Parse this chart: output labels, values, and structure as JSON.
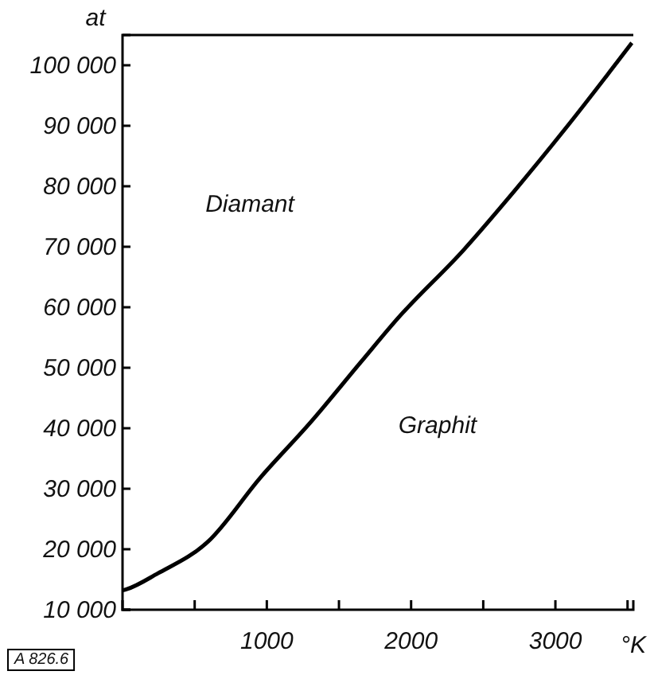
{
  "chart_data": {
    "type": "line",
    "xlabel": "°K",
    "ylabel": "at",
    "x": [
      0,
      30,
      244,
      594,
      954,
      1304,
      1654,
      1909,
      2365,
      2715,
      3075,
      3530
    ],
    "series": [
      {
        "color": "#000000",
        "values": [
          13200,
          13400,
          16000,
          21300,
          31800,
          41000,
          51000,
          58200,
          69500,
          79200,
          89700,
          103700
        ]
      }
    ],
    "xlim": [
      0,
      3540
    ],
    "ylim": [
      10000,
      105000
    ],
    "xticks": [
      {
        "value": 500,
        "label": null
      },
      1000,
      {
        "value": 1500,
        "label": null
      },
      2000,
      {
        "value": 2500,
        "label": null
      },
      3000,
      {
        "value": 3500,
        "label": null
      }
    ],
    "yticks": [
      {
        "value": 10000,
        "label": "10 000"
      },
      {
        "value": 20000,
        "label": "20 000"
      },
      {
        "value": 30000,
        "label": "30 000"
      },
      {
        "value": 40000,
        "label": "40 000"
      },
      {
        "value": 50000,
        "label": "50 000"
      },
      {
        "value": 60000,
        "label": "60 000"
      },
      {
        "value": 70000,
        "label": "70 000"
      },
      {
        "value": 80000,
        "label": "80 000"
      },
      {
        "value": 90000,
        "label": "90 000"
      },
      {
        "value": 100000,
        "label": "100 000"
      }
    ],
    "annotations": [
      "Diamant",
      "Graphit",
      "A 826.6"
    ],
    "grid": false,
    "marker": "none",
    "line_style": "solid"
  }
}
